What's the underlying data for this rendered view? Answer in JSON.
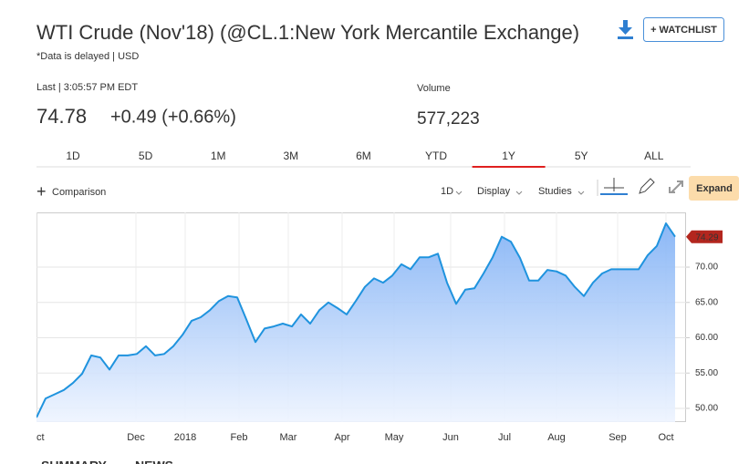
{
  "header": {
    "title": "WTI Crude (Nov'18) (@CL.1:New York Mercantile Exchange)",
    "note": "*Data is delayed | USD",
    "watchlist": "+ WATCHLIST"
  },
  "quote": {
    "last_label": "Last | 3:05:57 PM EDT",
    "price": "74.78",
    "change": "+0.49 (+0.66%)",
    "volume_label": "Volume",
    "volume": "577,223"
  },
  "range_tabs": [
    "1D",
    "5D",
    "1M",
    "3M",
    "6M",
    "YTD",
    "1Y",
    "5Y",
    "ALL"
  ],
  "active_tab": 6,
  "toolbar": {
    "comparison": "Comparison",
    "interval": "1D",
    "display": "Display",
    "studies": "Studies",
    "expand": "Expand"
  },
  "chart_data": {
    "type": "line",
    "color": "#1f93de",
    "grid": true,
    "x": [
      0,
      1,
      2,
      3,
      4,
      5,
      6,
      7,
      8,
      9,
      10,
      11,
      12,
      13,
      14,
      15,
      16,
      17,
      18,
      19,
      20,
      21,
      22,
      23,
      24,
      25,
      26,
      27,
      28,
      29,
      30,
      31,
      32,
      33,
      34,
      35,
      36,
      37,
      38,
      39,
      40,
      41,
      42,
      43,
      44,
      45,
      46,
      47,
      48,
      49,
      50,
      51,
      52,
      53,
      54,
      55,
      56,
      57,
      58,
      59,
      60,
      61,
      62,
      63,
      64,
      65,
      66,
      67,
      68,
      69,
      70
    ],
    "values": [
      48.7,
      51.4,
      52.0,
      52.6,
      53.6,
      54.9,
      57.5,
      57.2,
      55.5,
      57.5,
      57.5,
      57.7,
      58.8,
      57.5,
      57.7,
      58.8,
      60.4,
      62.4,
      62.9,
      63.9,
      65.2,
      65.9,
      65.7,
      62.6,
      59.4,
      61.3,
      61.6,
      62.0,
      61.6,
      63.3,
      62.0,
      63.9,
      65.0,
      64.2,
      63.3,
      65.2,
      67.2,
      68.4,
      67.8,
      68.8,
      70.4,
      69.7,
      71.4,
      71.4,
      71.9,
      67.8,
      64.8,
      66.8,
      67.0,
      69.1,
      71.4,
      74.3,
      73.6,
      71.3,
      68.1,
      68.1,
      69.6,
      69.4,
      68.8,
      67.2,
      65.9,
      67.8,
      69.1,
      69.7,
      69.7,
      69.7,
      69.7,
      71.7,
      73.0,
      76.2,
      74.3
    ],
    "xlim": [
      0,
      71.2
    ],
    "ylim": [
      48.06,
      77.75
    ],
    "xticks": [
      {
        "value": 0,
        "label": "Oct"
      },
      {
        "value": 10.9,
        "label": "Dec"
      },
      {
        "value": 16.3,
        "label": "2018"
      },
      {
        "value": 22.2,
        "label": "Feb"
      },
      {
        "value": 27.6,
        "label": "Mar"
      },
      {
        "value": 33.5,
        "label": "Apr"
      },
      {
        "value": 39.2,
        "label": "May"
      },
      {
        "value": 45.4,
        "label": "Jun"
      },
      {
        "value": 51.3,
        "label": "Jul"
      },
      {
        "value": 57.0,
        "label": "Aug"
      },
      {
        "value": 63.7,
        "label": "Sep"
      },
      {
        "value": 69.0,
        "label": "Oct"
      }
    ],
    "yticks": [
      {
        "value": 50,
        "label": "50.00"
      },
      {
        "value": 55,
        "label": "55.00"
      },
      {
        "value": 60,
        "label": "60.00"
      },
      {
        "value": 65,
        "label": "65.00"
      },
      {
        "value": 70,
        "label": "70.00"
      }
    ],
    "last_label": 74.29
  },
  "bottom_tabs": [
    "SUMMARY",
    "NEWS"
  ]
}
